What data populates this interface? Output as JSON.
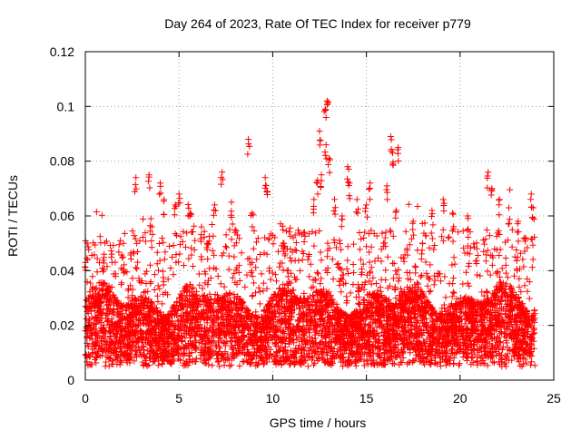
{
  "chart_data": {
    "type": "scatter",
    "title": "Day 264 of 2023, Rate Of TEC Index for receiver p779",
    "xlabel": "GPS time / hours",
    "ylabel": "ROTI / TECUs",
    "xlim": [
      0,
      25
    ],
    "ylim": [
      0,
      0.12
    ],
    "x_ticks": [
      0,
      5,
      10,
      15,
      20,
      25
    ],
    "x_tick_labels": [
      "0",
      "5",
      "10",
      "15",
      "20",
      "25"
    ],
    "y_ticks": [
      0,
      0.02,
      0.04,
      0.06,
      0.08,
      0.1,
      0.12
    ],
    "y_tick_labels": [
      "0",
      "0.02",
      "0.04",
      "0.06",
      "0.08",
      "0.1",
      "0.12"
    ],
    "grid": true,
    "marker": "+",
    "color": "#ff0000",
    "x_coverage_hours": [
      0,
      24
    ],
    "typical_range": [
      0.005,
      0.03
    ],
    "series": [
      {
        "name": "ROTI",
        "notable_points": [
          {
            "x": 2.7,
            "y": 0.074
          },
          {
            "x": 3.4,
            "y": 0.075
          },
          {
            "x": 3.5,
            "y": 0.059
          },
          {
            "x": 4.0,
            "y": 0.072
          },
          {
            "x": 4.2,
            "y": 0.066
          },
          {
            "x": 4.8,
            "y": 0.064
          },
          {
            "x": 5.0,
            "y": 0.068
          },
          {
            "x": 5.6,
            "y": 0.061
          },
          {
            "x": 6.2,
            "y": 0.056
          },
          {
            "x": 6.9,
            "y": 0.064
          },
          {
            "x": 7.3,
            "y": 0.076
          },
          {
            "x": 7.8,
            "y": 0.065
          },
          {
            "x": 8.0,
            "y": 0.055
          },
          {
            "x": 8.7,
            "y": 0.088
          },
          {
            "x": 8.9,
            "y": 0.061
          },
          {
            "x": 9.6,
            "y": 0.074
          },
          {
            "x": 9.7,
            "y": 0.069
          },
          {
            "x": 11.2,
            "y": 0.053
          },
          {
            "x": 12.2,
            "y": 0.066
          },
          {
            "x": 12.4,
            "y": 0.073
          },
          {
            "x": 12.5,
            "y": 0.091
          },
          {
            "x": 12.6,
            "y": 0.075
          },
          {
            "x": 12.8,
            "y": 0.099
          },
          {
            "x": 12.9,
            "y": 0.102
          },
          {
            "x": 12.85,
            "y": 0.086
          },
          {
            "x": 13.0,
            "y": 0.081
          },
          {
            "x": 13.3,
            "y": 0.066
          },
          {
            "x": 13.7,
            "y": 0.06
          },
          {
            "x": 14.0,
            "y": 0.078
          },
          {
            "x": 14.1,
            "y": 0.072
          },
          {
            "x": 14.5,
            "y": 0.066
          },
          {
            "x": 15.0,
            "y": 0.064
          },
          {
            "x": 15.2,
            "y": 0.072
          },
          {
            "x": 16.1,
            "y": 0.071
          },
          {
            "x": 16.3,
            "y": 0.089
          },
          {
            "x": 16.4,
            "y": 0.083
          },
          {
            "x": 16.7,
            "y": 0.085
          },
          {
            "x": 16.6,
            "y": 0.062
          },
          {
            "x": 17.5,
            "y": 0.058
          },
          {
            "x": 18.5,
            "y": 0.062
          },
          {
            "x": 19.1,
            "y": 0.066
          },
          {
            "x": 19.6,
            "y": 0.061
          },
          {
            "x": 20.4,
            "y": 0.06
          },
          {
            "x": 21.5,
            "y": 0.076
          },
          {
            "x": 21.7,
            "y": 0.07
          },
          {
            "x": 22.1,
            "y": 0.066
          },
          {
            "x": 22.6,
            "y": 0.063
          },
          {
            "x": 23.1,
            "y": 0.058
          },
          {
            "x": 23.8,
            "y": 0.068
          },
          {
            "x": 23.9,
            "y": 0.063
          },
          {
            "x": 0.0,
            "y": 0.043
          },
          {
            "x": 1.0,
            "y": 0.046
          },
          {
            "x": 2.0,
            "y": 0.045
          },
          {
            "x": 6.5,
            "y": 0.05
          },
          {
            "x": 10.6,
            "y": 0.05
          },
          {
            "x": 11.7,
            "y": 0.054
          },
          {
            "x": 18.0,
            "y": 0.05
          },
          {
            "x": 20.9,
            "y": 0.048
          },
          {
            "x": 23.5,
            "y": 0.052
          }
        ]
      }
    ]
  }
}
